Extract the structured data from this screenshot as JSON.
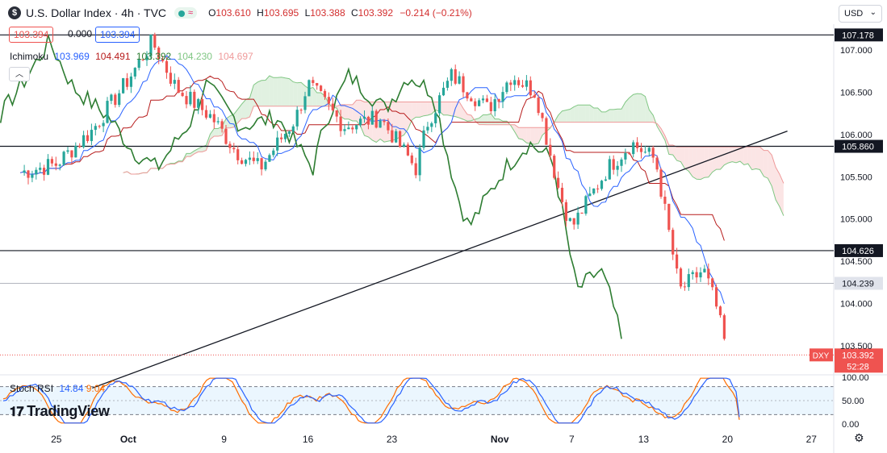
{
  "header": {
    "symbol_title": "U.S. Dollar Index · 4h · TVC",
    "ohlc": [
      {
        "key": "O",
        "value": "103.610"
      },
      {
        "key": "H",
        "value": "103.695"
      },
      {
        "key": "L",
        "value": "103.388"
      },
      {
        "key": "C",
        "value": "103.392"
      }
    ],
    "change": "−0.214 (−0.21%)",
    "currency": "USD"
  },
  "price_boxes": {
    "left": "103.394",
    "middle": "0.000",
    "right": "103.394"
  },
  "ichimoku": {
    "label": "Ichimoku",
    "values": [
      {
        "text": "103.969",
        "color": "#2962ff"
      },
      {
        "text": "104.491",
        "color": "#b71c1c"
      },
      {
        "text": "103.392",
        "color": "#2e7d32"
      },
      {
        "text": "104.230",
        "color": "#81c784"
      },
      {
        "text": "104.697",
        "color": "#ef9a9a"
      }
    ]
  },
  "stoch_rsi": {
    "label": "Stoch RSI",
    "k": "14.84",
    "d": "9.04"
  },
  "branding": {
    "logo_text": "TradingView"
  },
  "colors": {
    "up": "#26a69a",
    "down": "#ef5350",
    "tenkan": "#2962ff",
    "kijun": "#b71c1c",
    "chikou": "#2e7d32",
    "span_a": "#81c784",
    "span_b": "#ef9a9a",
    "stoch_k": "#2962ff",
    "stoch_d": "#ff6d00"
  },
  "chart_data": {
    "type": "candlestick",
    "symbol": "DXY",
    "interval": "4h",
    "y_axis_ticks": [
      "107.000",
      "106.500",
      "106.000",
      "105.500",
      "105.000",
      "104.500",
      "104.000",
      "103.500"
    ],
    "ylim": [
      103.2,
      107.35
    ],
    "x_axis_ticks": [
      "25",
      "Oct",
      "9",
      "16",
      "23",
      "Nov",
      "7",
      "13",
      "20",
      "27"
    ],
    "horizontal_levels": [
      {
        "value": 107.178,
        "label": "107.178",
        "style": "solid"
      },
      {
        "value": 105.86,
        "label": "105.860",
        "style": "solid"
      },
      {
        "value": 104.626,
        "label": "104.626",
        "style": "solid"
      },
      {
        "value": 104.239,
        "label": "104.239",
        "style": "gray"
      }
    ],
    "last_price": {
      "symbol": "DXY",
      "value": "103.392",
      "countdown": "52:28"
    },
    "trendline": {
      "from": {
        "date": "Sep 28",
        "value": 103.0
      },
      "to": {
        "date": "Nov 25",
        "value": 106.04
      }
    },
    "price_path": [
      {
        "date": "Sep 22",
        "close": 105.55
      },
      {
        "date": "Sep 25",
        "close": 105.65
      },
      {
        "date": "Sep 28",
        "close": 106.05
      },
      {
        "date": "Oct 1",
        "close": 106.65
      },
      {
        "date": "Oct 3",
        "close": 107.1
      },
      {
        "date": "Oct 5",
        "close": 106.55
      },
      {
        "date": "Oct 8",
        "close": 106.2
      },
      {
        "date": "Oct 10",
        "close": 105.8
      },
      {
        "date": "Oct 12",
        "close": 105.6
      },
      {
        "date": "Oct 15",
        "close": 106.2
      },
      {
        "date": "Oct 16",
        "close": 106.6
      },
      {
        "date": "Oct 19",
        "close": 106.1
      },
      {
        "date": "Oct 22",
        "close": 106.2
      },
      {
        "date": "Oct 25",
        "close": 105.6
      },
      {
        "date": "Oct 26",
        "close": 106.15
      },
      {
        "date": "Oct 28",
        "close": 106.7
      },
      {
        "date": "Oct 31",
        "close": 106.3
      },
      {
        "date": "Nov 2",
        "close": 106.7
      },
      {
        "date": "Nov 4",
        "close": 106.5
      },
      {
        "date": "Nov 6",
        "close": 105.3
      },
      {
        "date": "Nov 7",
        "close": 104.9
      },
      {
        "date": "Nov 10",
        "close": 105.6
      },
      {
        "date": "Nov 12",
        "close": 105.9
      },
      {
        "date": "Nov 14",
        "close": 105.7
      },
      {
        "date": "Nov 16",
        "close": 104.15
      },
      {
        "date": "Nov 18",
        "close": 104.4
      },
      {
        "date": "Nov 19",
        "close": 104.0
      },
      {
        "date": "Nov 20",
        "close": 103.39
      }
    ],
    "stoch_rsi": {
      "ylim": [
        0,
        100
      ],
      "ticks": [
        "100.00",
        "50.00",
        "0.00"
      ],
      "bands": [
        80,
        20
      ],
      "k": 14.84,
      "d": 9.04
    }
  }
}
